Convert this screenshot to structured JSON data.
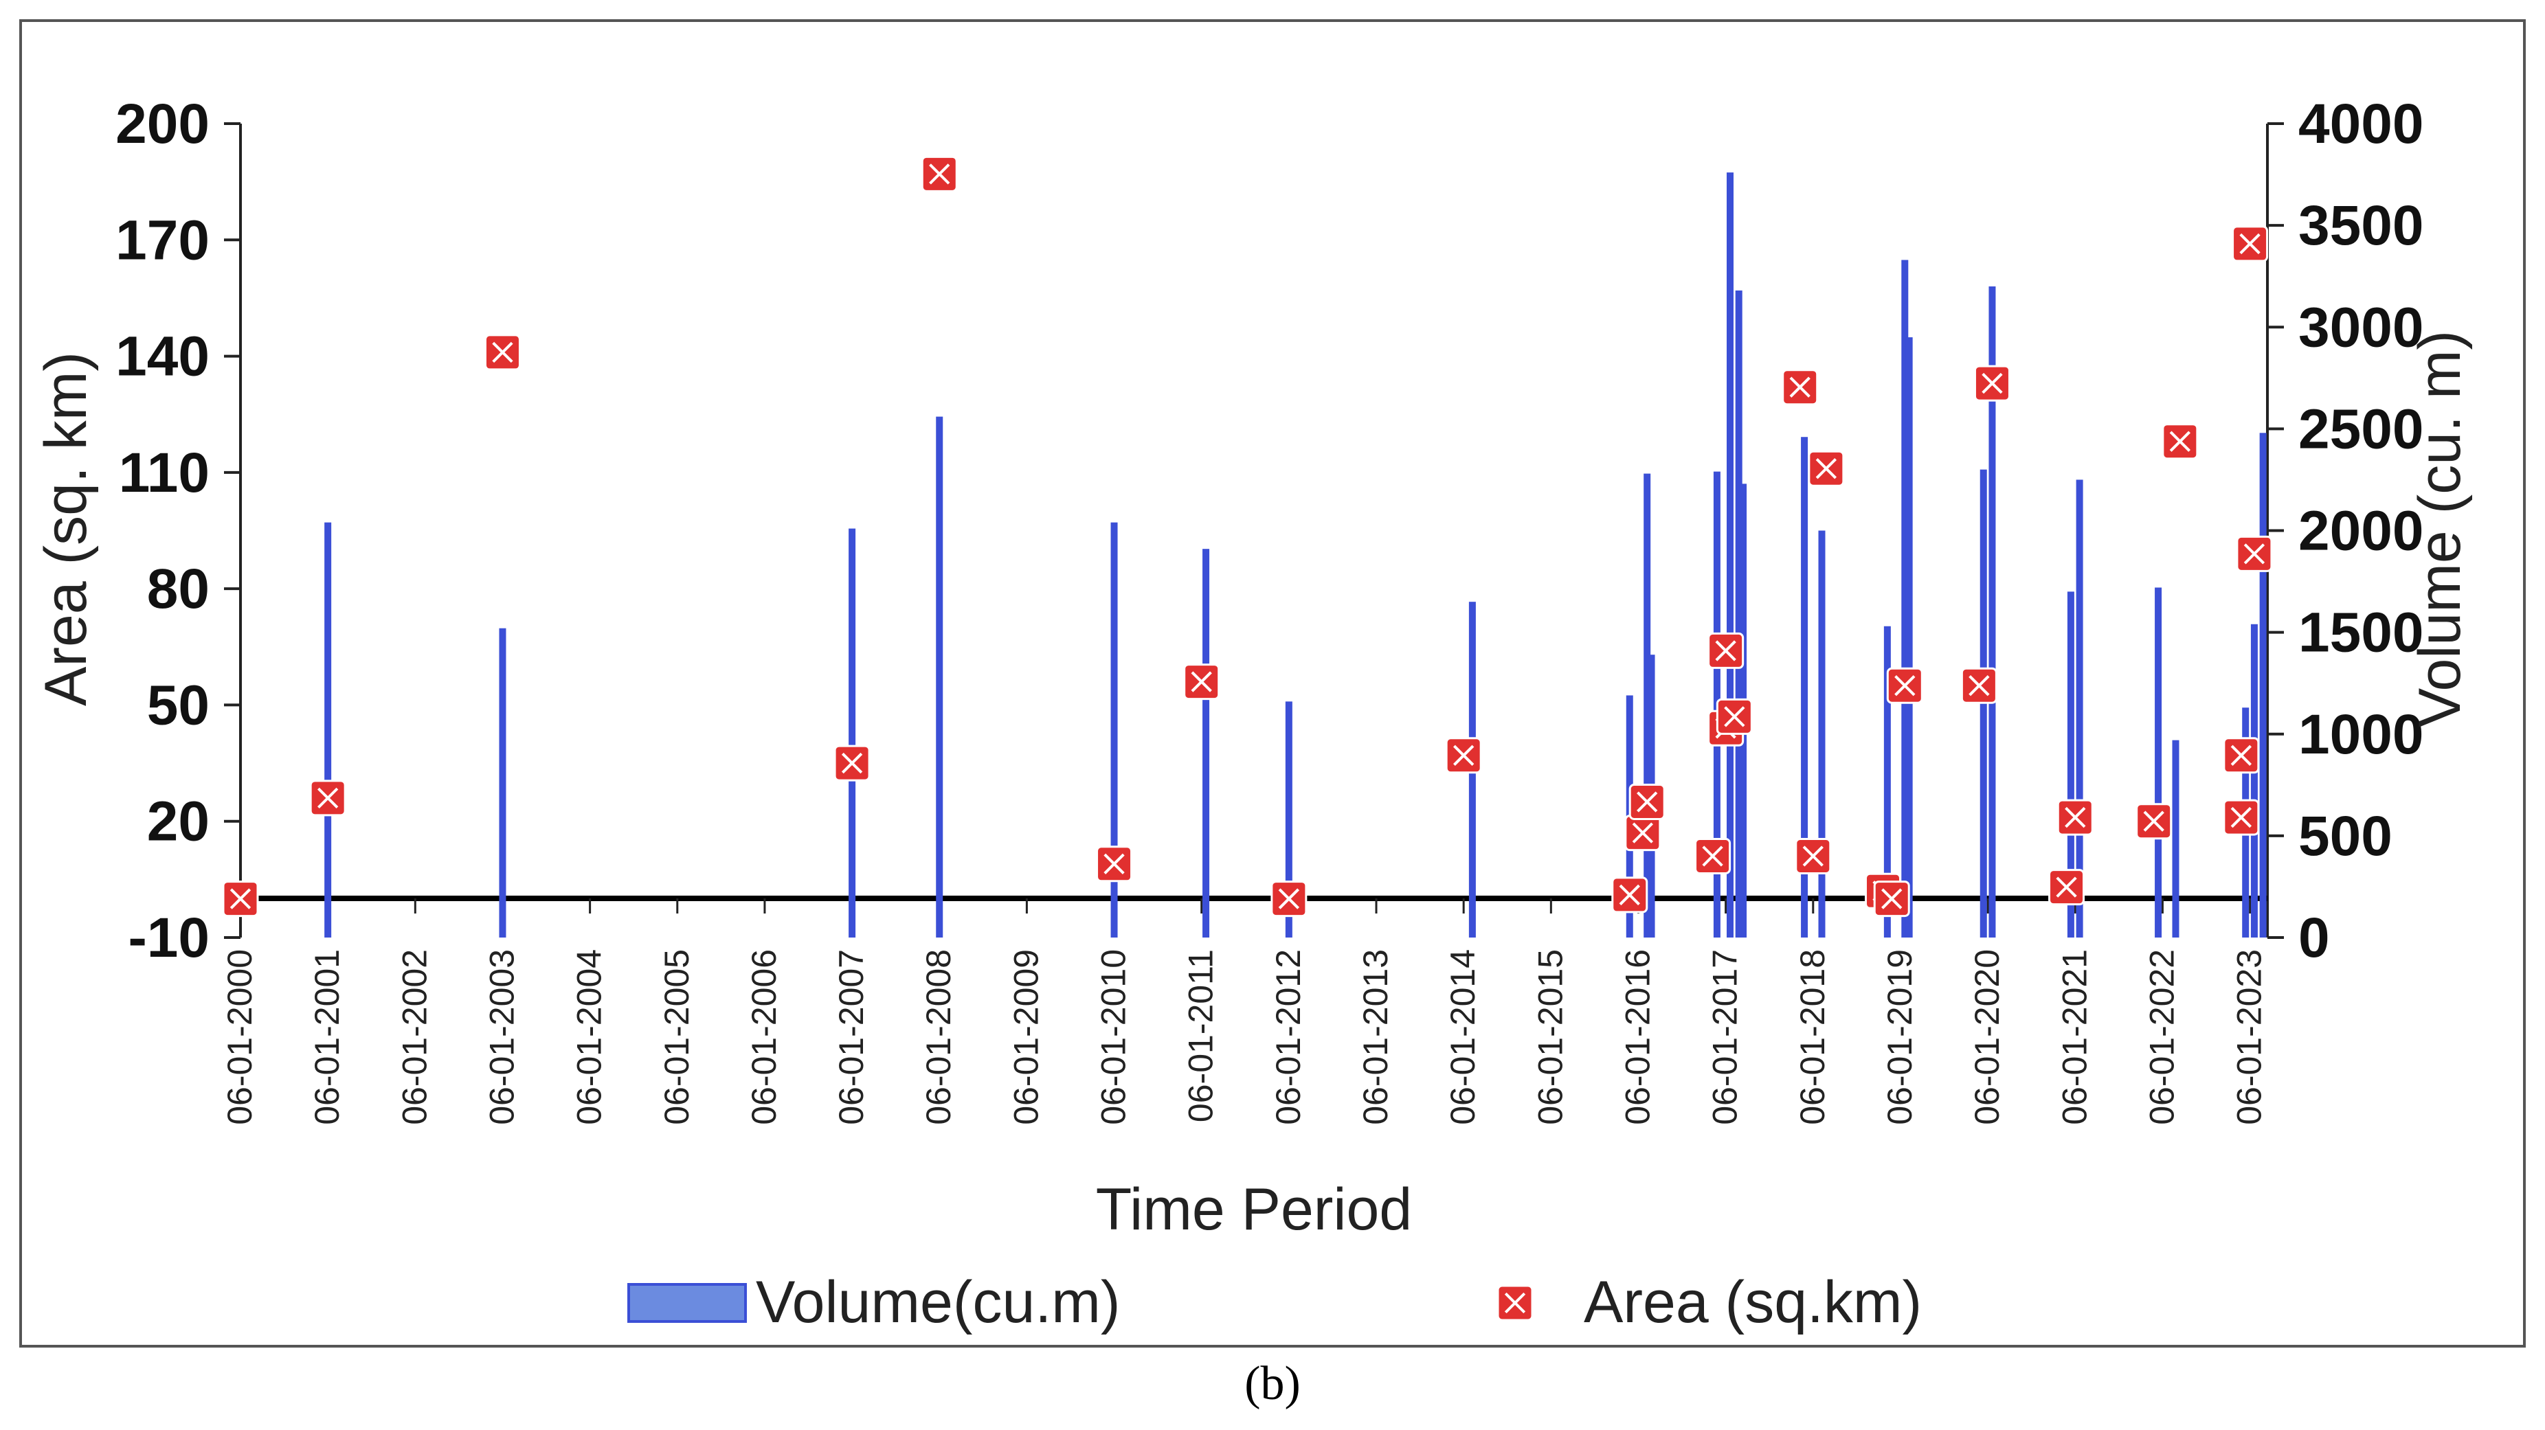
{
  "caption": "(b)",
  "chart_data": {
    "type": "bar+scatter",
    "xlabel": "Time Period",
    "ylabel_left": "Area (sq. km)",
    "ylabel_right": "Volume (cu. m)",
    "ylim_left": [
      -10,
      200
    ],
    "ylim_right": [
      0,
      4000
    ],
    "yticks_left": [
      -10,
      20,
      50,
      80,
      110,
      140,
      170,
      200
    ],
    "yticks_right": [
      0,
      500,
      1000,
      1500,
      2000,
      2500,
      3000,
      3500,
      4000
    ],
    "xlim": [
      2000,
      2023.2
    ],
    "x_tick_labels": [
      {
        "year": 2000,
        "label": "06-01-2000"
      },
      {
        "year": 2001,
        "label": "06-01-2001"
      },
      {
        "year": 2002,
        "label": "06-01-2002"
      },
      {
        "year": 2003,
        "label": "06-01-2003"
      },
      {
        "year": 2004,
        "label": "06-01-2004"
      },
      {
        "year": 2005,
        "label": "06-01-2005"
      },
      {
        "year": 2006,
        "label": "06-01-2006"
      },
      {
        "year": 2007,
        "label": "06-01-2007"
      },
      {
        "year": 2008,
        "label": "06-01-2008"
      },
      {
        "year": 2009,
        "label": "06-01-2009"
      },
      {
        "year": 2010,
        "label": "06-01-2010"
      },
      {
        "year": 2011,
        "label": "06-01-2011"
      },
      {
        "year": 2012,
        "label": "06-01-2012"
      },
      {
        "year": 2013,
        "label": "06-01-2013"
      },
      {
        "year": 2014,
        "label": "06-01-2014"
      },
      {
        "year": 2015,
        "label": "06-01-2015"
      },
      {
        "year": 2016,
        "label": "06-01-2016"
      },
      {
        "year": 2017,
        "label": "06-01-2017"
      },
      {
        "year": 2018,
        "label": "06-01-2018"
      },
      {
        "year": 2019,
        "label": "06-01-2019"
      },
      {
        "year": 2020,
        "label": "06-01-2020"
      },
      {
        "year": 2021,
        "label": "06-01-2021"
      },
      {
        "year": 2022,
        "label": "06-01-2022"
      },
      {
        "year": 2023,
        "label": "06-01-2023"
      }
    ],
    "series": [
      {
        "name": "Volume(cu.m)",
        "type": "bar",
        "axis": "right",
        "color": "#3b4fd6",
        "points": [
          {
            "x": 2001.0,
            "y": 2040
          },
          {
            "x": 2003.0,
            "y": 1520
          },
          {
            "x": 2007.0,
            "y": 2010
          },
          {
            "x": 2008.0,
            "y": 2560
          },
          {
            "x": 2010.0,
            "y": 2040
          },
          {
            "x": 2011.05,
            "y": 1910
          },
          {
            "x": 2012.0,
            "y": 1160
          },
          {
            "x": 2014.1,
            "y": 1650
          },
          {
            "x": 2015.9,
            "y": 1190
          },
          {
            "x": 2016.1,
            "y": 2280
          },
          {
            "x": 2016.15,
            "y": 1390
          },
          {
            "x": 2016.9,
            "y": 2290
          },
          {
            "x": 2017.05,
            "y": 3760
          },
          {
            "x": 2017.15,
            "y": 3180
          },
          {
            "x": 2017.2,
            "y": 2230
          },
          {
            "x": 2017.9,
            "y": 2460
          },
          {
            "x": 2018.1,
            "y": 2000
          },
          {
            "x": 2018.85,
            "y": 1530
          },
          {
            "x": 2019.05,
            "y": 3330
          },
          {
            "x": 2019.1,
            "y": 2950
          },
          {
            "x": 2019.95,
            "y": 2300
          },
          {
            "x": 2020.05,
            "y": 3200
          },
          {
            "x": 2020.95,
            "y": 1700
          },
          {
            "x": 2021.05,
            "y": 2250
          },
          {
            "x": 2021.95,
            "y": 1720
          },
          {
            "x": 2022.15,
            "y": 970
          },
          {
            "x": 2022.95,
            "y": 1130
          },
          {
            "x": 2023.05,
            "y": 1540
          },
          {
            "x": 2023.15,
            "y": 2480
          }
        ]
      },
      {
        "name": "Area (sq.km)",
        "type": "scatter",
        "axis": "left",
        "color": "#e1302f",
        "points": [
          {
            "x": 2000.0,
            "y": 0
          },
          {
            "x": 2001.0,
            "y": 26
          },
          {
            "x": 2003.0,
            "y": 141
          },
          {
            "x": 2007.0,
            "y": 35
          },
          {
            "x": 2008.0,
            "y": 187
          },
          {
            "x": 2010.0,
            "y": 9
          },
          {
            "x": 2011.0,
            "y": 56
          },
          {
            "x": 2012.0,
            "y": 0
          },
          {
            "x": 2014.0,
            "y": 37
          },
          {
            "x": 2015.9,
            "y": 1
          },
          {
            "x": 2016.05,
            "y": 17
          },
          {
            "x": 2016.1,
            "y": 25
          },
          {
            "x": 2016.85,
            "y": 11
          },
          {
            "x": 2017.0,
            "y": 64
          },
          {
            "x": 2017.0,
            "y": 44
          },
          {
            "x": 2017.1,
            "y": 47
          },
          {
            "x": 2017.85,
            "y": 132
          },
          {
            "x": 2018.0,
            "y": 11
          },
          {
            "x": 2018.15,
            "y": 111
          },
          {
            "x": 2018.8,
            "y": 2
          },
          {
            "x": 2018.9,
            "y": 0
          },
          {
            "x": 2019.05,
            "y": 55
          },
          {
            "x": 2019.9,
            "y": 55
          },
          {
            "x": 2020.05,
            "y": 133
          },
          {
            "x": 2020.9,
            "y": 3
          },
          {
            "x": 2021.0,
            "y": 21
          },
          {
            "x": 2021.9,
            "y": 20
          },
          {
            "x": 2022.2,
            "y": 118
          },
          {
            "x": 2022.9,
            "y": 21
          },
          {
            "x": 2022.9,
            "y": 37
          },
          {
            "x": 2023.0,
            "y": 169
          },
          {
            "x": 2023.05,
            "y": 89
          }
        ]
      }
    ],
    "legend": {
      "placement": "bottom",
      "entries": [
        "Volume(cu.m)",
        "Area (sq.km)"
      ]
    }
  }
}
